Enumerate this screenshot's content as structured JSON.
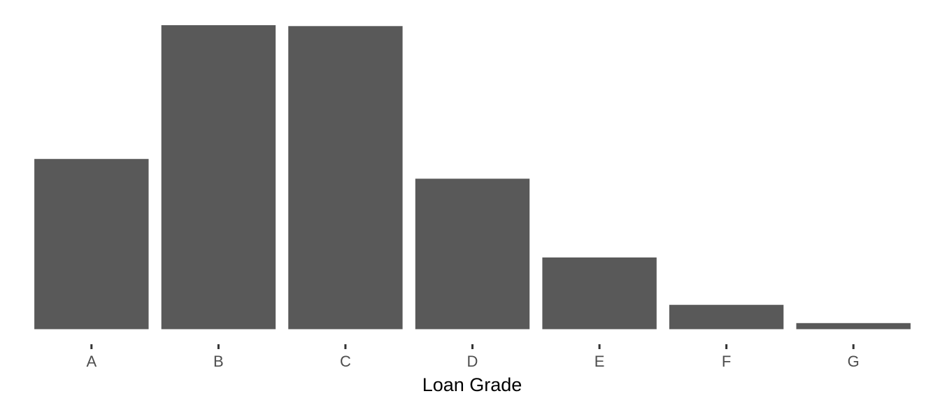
{
  "chart_data": {
    "type": "bar",
    "categories": [
      "A",
      "B",
      "C",
      "D",
      "E",
      "F",
      "G"
    ],
    "values": [
      0.56,
      1.0,
      0.997,
      0.495,
      0.236,
      0.08,
      0.02
    ],
    "ylim": [
      0,
      1.0
    ],
    "xlabel": "Loan Grade",
    "ylabel": "",
    "title": "",
    "grid": false,
    "legend": "none",
    "bar_color": "#595959"
  }
}
